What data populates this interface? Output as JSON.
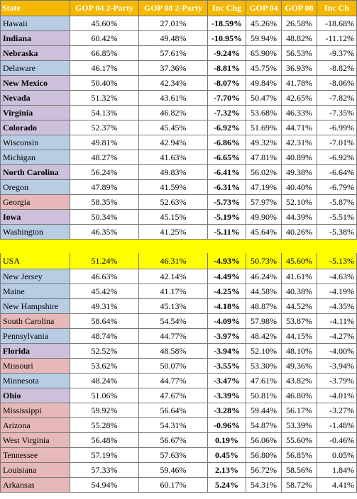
{
  "colors": {
    "header_bg": "#f5b800",
    "header_text": "#ffffff",
    "blue_state": "#b8cce4",
    "red_state": "#e6b8b7",
    "purple_state": "#ccc0da",
    "usa_highlight": "#ffff00"
  },
  "columns": [
    "State",
    "GOP 04 2-Party",
    "GOP 08 2-Party",
    "Inc Chg",
    "GOP 04",
    "GOP 08",
    "Inc Ch"
  ],
  "rows_top": [
    {
      "state": "Hawaii",
      "color": "blue",
      "bold": false,
      "gop04_2p": "45.60%",
      "gop08_2p": "27.01%",
      "inc_chg": "-18.59%",
      "gop04": "45.26%",
      "gop08": "26.58%",
      "inc_ch": "-18.68%"
    },
    {
      "state": "Indiana",
      "color": "purple",
      "bold": true,
      "gop04_2p": "60.42%",
      "gop08_2p": "49.48%",
      "inc_chg": "-10.95%",
      "gop04": "59.94%",
      "gop08": "48.82%",
      "inc_ch": "-11.12%"
    },
    {
      "state": "Nebraska",
      "color": "purple",
      "bold": true,
      "gop04_2p": "66.85%",
      "gop08_2p": "57.61%",
      "inc_chg": "-9.24%",
      "gop04": "65.90%",
      "gop08": "56.53%",
      "inc_ch": "-9.37%"
    },
    {
      "state": "Delaware",
      "color": "blue",
      "bold": false,
      "gop04_2p": "46.17%",
      "gop08_2p": "37.36%",
      "inc_chg": "-8.81%",
      "gop04": "45.75%",
      "gop08": "36.93%",
      "inc_ch": "-8.82%"
    },
    {
      "state": "New Mexico",
      "color": "purple",
      "bold": true,
      "gop04_2p": "50.40%",
      "gop08_2p": "42.34%",
      "inc_chg": "-8.07%",
      "gop04": "49.84%",
      "gop08": "41.78%",
      "inc_ch": "-8.06%"
    },
    {
      "state": "Nevada",
      "color": "purple",
      "bold": true,
      "gop04_2p": "51.32%",
      "gop08_2p": "43.61%",
      "inc_chg": "-7.70%",
      "gop04": "50.47%",
      "gop08": "42.65%",
      "inc_ch": "-7.82%"
    },
    {
      "state": "Virginia",
      "color": "purple",
      "bold": true,
      "gop04_2p": "54.13%",
      "gop08_2p": "46.82%",
      "inc_chg": "-7.32%",
      "gop04": "53.68%",
      "gop08": "46.33%",
      "inc_ch": "-7.35%"
    },
    {
      "state": "Colorado",
      "color": "purple",
      "bold": true,
      "gop04_2p": "52.37%",
      "gop08_2p": "45.45%",
      "inc_chg": "-6.92%",
      "gop04": "51.69%",
      "gop08": "44.71%",
      "inc_ch": "-6.99%"
    },
    {
      "state": "Wisconsin",
      "color": "blue",
      "bold": false,
      "gop04_2p": "49.81%",
      "gop08_2p": "42.94%",
      "inc_chg": "-6.86%",
      "gop04": "49.32%",
      "gop08": "42.31%",
      "inc_ch": "-7.01%"
    },
    {
      "state": "Michigan",
      "color": "blue",
      "bold": false,
      "gop04_2p": "48.27%",
      "gop08_2p": "41.63%",
      "inc_chg": "-6.65%",
      "gop04": "47.81%",
      "gop08": "40.89%",
      "inc_ch": "-6.92%"
    },
    {
      "state": "North Carolina",
      "color": "purple",
      "bold": true,
      "gop04_2p": "56.24%",
      "gop08_2p": "49.83%",
      "inc_chg": "-6.41%",
      "gop04": "56.02%",
      "gop08": "49.38%",
      "inc_ch": "-6.64%"
    },
    {
      "state": "Oregon",
      "color": "blue",
      "bold": false,
      "gop04_2p": "47.89%",
      "gop08_2p": "41.59%",
      "inc_chg": "-6.31%",
      "gop04": "47.19%",
      "gop08": "40.40%",
      "inc_ch": "-6.79%"
    },
    {
      "state": "Georgia",
      "color": "red",
      "bold": false,
      "gop04_2p": "58.35%",
      "gop08_2p": "52.63%",
      "inc_chg": "-5.73%",
      "gop04": "57.97%",
      "gop08": "52.10%",
      "inc_ch": "-5.87%"
    },
    {
      "state": "Iowa",
      "color": "purple",
      "bold": true,
      "gop04_2p": "50.34%",
      "gop08_2p": "45.15%",
      "inc_chg": "-5.19%",
      "gop04": "49.90%",
      "gop08": "44.39%",
      "inc_ch": "-5.51%"
    },
    {
      "state": "Washington",
      "color": "blue",
      "bold": false,
      "gop04_2p": "46.35%",
      "gop08_2p": "41.25%",
      "inc_chg": "-5.11%",
      "gop04": "45.64%",
      "gop08": "40.26%",
      "inc_ch": "-5.38%"
    }
  ],
  "usa": {
    "state": "USA",
    "gop04_2p": "51.24%",
    "gop08_2p": "46.31%",
    "inc_chg": "-4.93%",
    "gop04": "50.73%",
    "gop08": "45.60%",
    "inc_ch": "-5.13%"
  },
  "rows_bottom": [
    {
      "state": "New Jersey",
      "color": "blue",
      "bold": false,
      "gop04_2p": "46.63%",
      "gop08_2p": "42.14%",
      "inc_chg": "-4.49%",
      "gop04": "46.24%",
      "gop08": "41.61%",
      "inc_ch": "-4.63%"
    },
    {
      "state": "Maine",
      "color": "blue",
      "bold": false,
      "gop04_2p": "45.42%",
      "gop08_2p": "41.17%",
      "inc_chg": "-4.25%",
      "gop04": "44.58%",
      "gop08": "40.38%",
      "inc_ch": "-4.19%"
    },
    {
      "state": "New Hampshire",
      "color": "blue",
      "bold": false,
      "gop04_2p": "49.31%",
      "gop08_2p": "45.13%",
      "inc_chg": "-4.18%",
      "gop04": "48.87%",
      "gop08": "44.52%",
      "inc_ch": "-4.35%"
    },
    {
      "state": "South Carolina",
      "color": "red",
      "bold": false,
      "gop04_2p": "58.64%",
      "gop08_2p": "54.54%",
      "inc_chg": "-4.09%",
      "gop04": "57.98%",
      "gop08": "53.87%",
      "inc_ch": "-4.11%"
    },
    {
      "state": "Pennsylvania",
      "color": "blue",
      "bold": false,
      "gop04_2p": "48.74%",
      "gop08_2p": "44.77%",
      "inc_chg": "-3.97%",
      "gop04": "48.42%",
      "gop08": "44.15%",
      "inc_ch": "-4.27%"
    },
    {
      "state": "Florida",
      "color": "purple",
      "bold": true,
      "gop04_2p": "52.52%",
      "gop08_2p": "48.58%",
      "inc_chg": "-3.94%",
      "gop04": "52.10%",
      "gop08": "48.10%",
      "inc_ch": "-4.00%"
    },
    {
      "state": "Missouri",
      "color": "red",
      "bold": false,
      "gop04_2p": "53.62%",
      "gop08_2p": "50.07%",
      "inc_chg": "-3.55%",
      "gop04": "53.30%",
      "gop08": "49.36%",
      "inc_ch": "-3.94%"
    },
    {
      "state": "Minnesota",
      "color": "blue",
      "bold": false,
      "gop04_2p": "48.24%",
      "gop08_2p": "44.77%",
      "inc_chg": "-3.47%",
      "gop04": "47.61%",
      "gop08": "43.82%",
      "inc_ch": "-3.79%"
    },
    {
      "state": "Ohio",
      "color": "purple",
      "bold": true,
      "gop04_2p": "51.06%",
      "gop08_2p": "47.67%",
      "inc_chg": "-3.39%",
      "gop04": "50.81%",
      "gop08": "46.80%",
      "inc_ch": "-4.01%"
    },
    {
      "state": "Mississippi",
      "color": "red",
      "bold": false,
      "gop04_2p": "59.92%",
      "gop08_2p": "56.64%",
      "inc_chg": "-3.28%",
      "gop04": "59.44%",
      "gop08": "56.17%",
      "inc_ch": "-3.27%"
    },
    {
      "state": "Arizona",
      "color": "red",
      "bold": false,
      "gop04_2p": "55.28%",
      "gop08_2p": "54.31%",
      "inc_chg": "-0.96%",
      "gop04": "54.87%",
      "gop08": "53.39%",
      "inc_ch": "-1.48%"
    },
    {
      "state": "West Virginia",
      "color": "red",
      "bold": false,
      "gop04_2p": "56.48%",
      "gop08_2p": "56.67%",
      "inc_chg": "0.19%",
      "gop04": "56.06%",
      "gop08": "55.60%",
      "inc_ch": "-0.46%"
    },
    {
      "state": "Tennessee",
      "color": "red",
      "bold": false,
      "gop04_2p": "57.19%",
      "gop08_2p": "57.63%",
      "inc_chg": "0.45%",
      "gop04": "56.80%",
      "gop08": "56.85%",
      "inc_ch": "0.05%"
    },
    {
      "state": "Louisiana",
      "color": "red",
      "bold": false,
      "gop04_2p": "57.33%",
      "gop08_2p": "59.46%",
      "inc_chg": "2.13%",
      "gop04": "56.72%",
      "gop08": "58.56%",
      "inc_ch": "1.84%"
    },
    {
      "state": "Arkansas",
      "color": "red",
      "bold": false,
      "gop04_2p": "54.94%",
      "gop08_2p": "60.17%",
      "inc_chg": "5.24%",
      "gop04": "54.31%",
      "gop08": "58.72%",
      "inc_ch": "4.41%"
    }
  ]
}
